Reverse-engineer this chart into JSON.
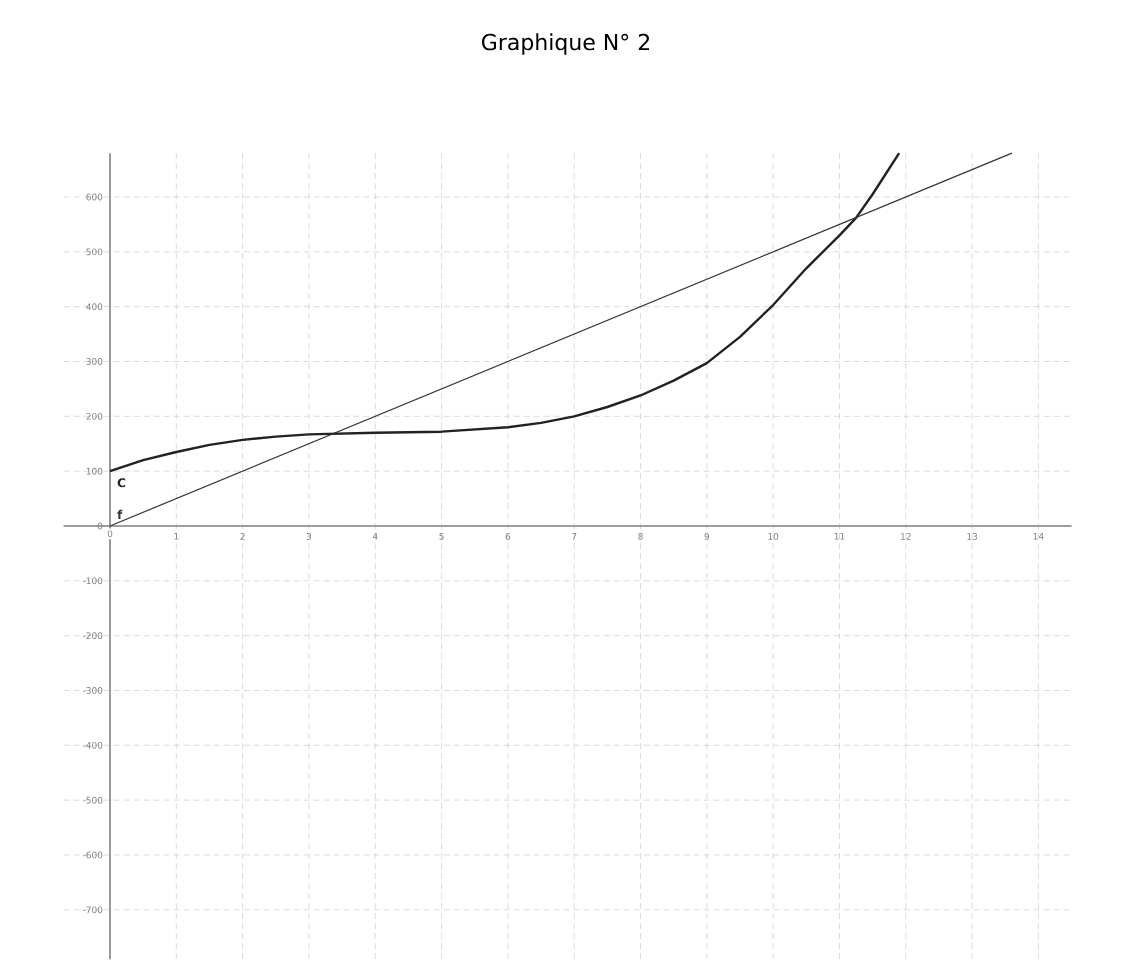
{
  "chart_data": {
    "type": "line",
    "title": "Graphique N° 2",
    "series": [
      {
        "name": "C",
        "color": "#222222",
        "x": [
          0,
          0.5,
          1,
          1.5,
          2,
          2.5,
          3,
          4,
          5,
          6,
          6.5,
          7,
          7.5,
          8,
          8.5,
          9,
          9.5,
          10,
          10.5,
          11,
          11.25,
          11.5,
          11.9
        ],
        "values": [
          100,
          120,
          135,
          148,
          157,
          163,
          167,
          170,
          172,
          180,
          188,
          200,
          217,
          238,
          265,
          297,
          345,
          403,
          470,
          530,
          562,
          605,
          680
        ]
      },
      {
        "name": "f",
        "color": "#333333",
        "x": [
          0,
          13.6
        ],
        "values": [
          0,
          680
        ]
      }
    ],
    "xlim": [
      -0.7,
      14.5
    ],
    "ylim": [
      -790,
      680
    ],
    "xticks": [
      0,
      1,
      2,
      3,
      4,
      5,
      6,
      7,
      8,
      9,
      10,
      11,
      12,
      13,
      14
    ],
    "yticks": [
      -700,
      -600,
      -500,
      -400,
      -300,
      -200,
      -100,
      0,
      100,
      200,
      300,
      400,
      500,
      600
    ],
    "grid": true,
    "legend": false,
    "marker": "none",
    "line_style": "solid"
  }
}
